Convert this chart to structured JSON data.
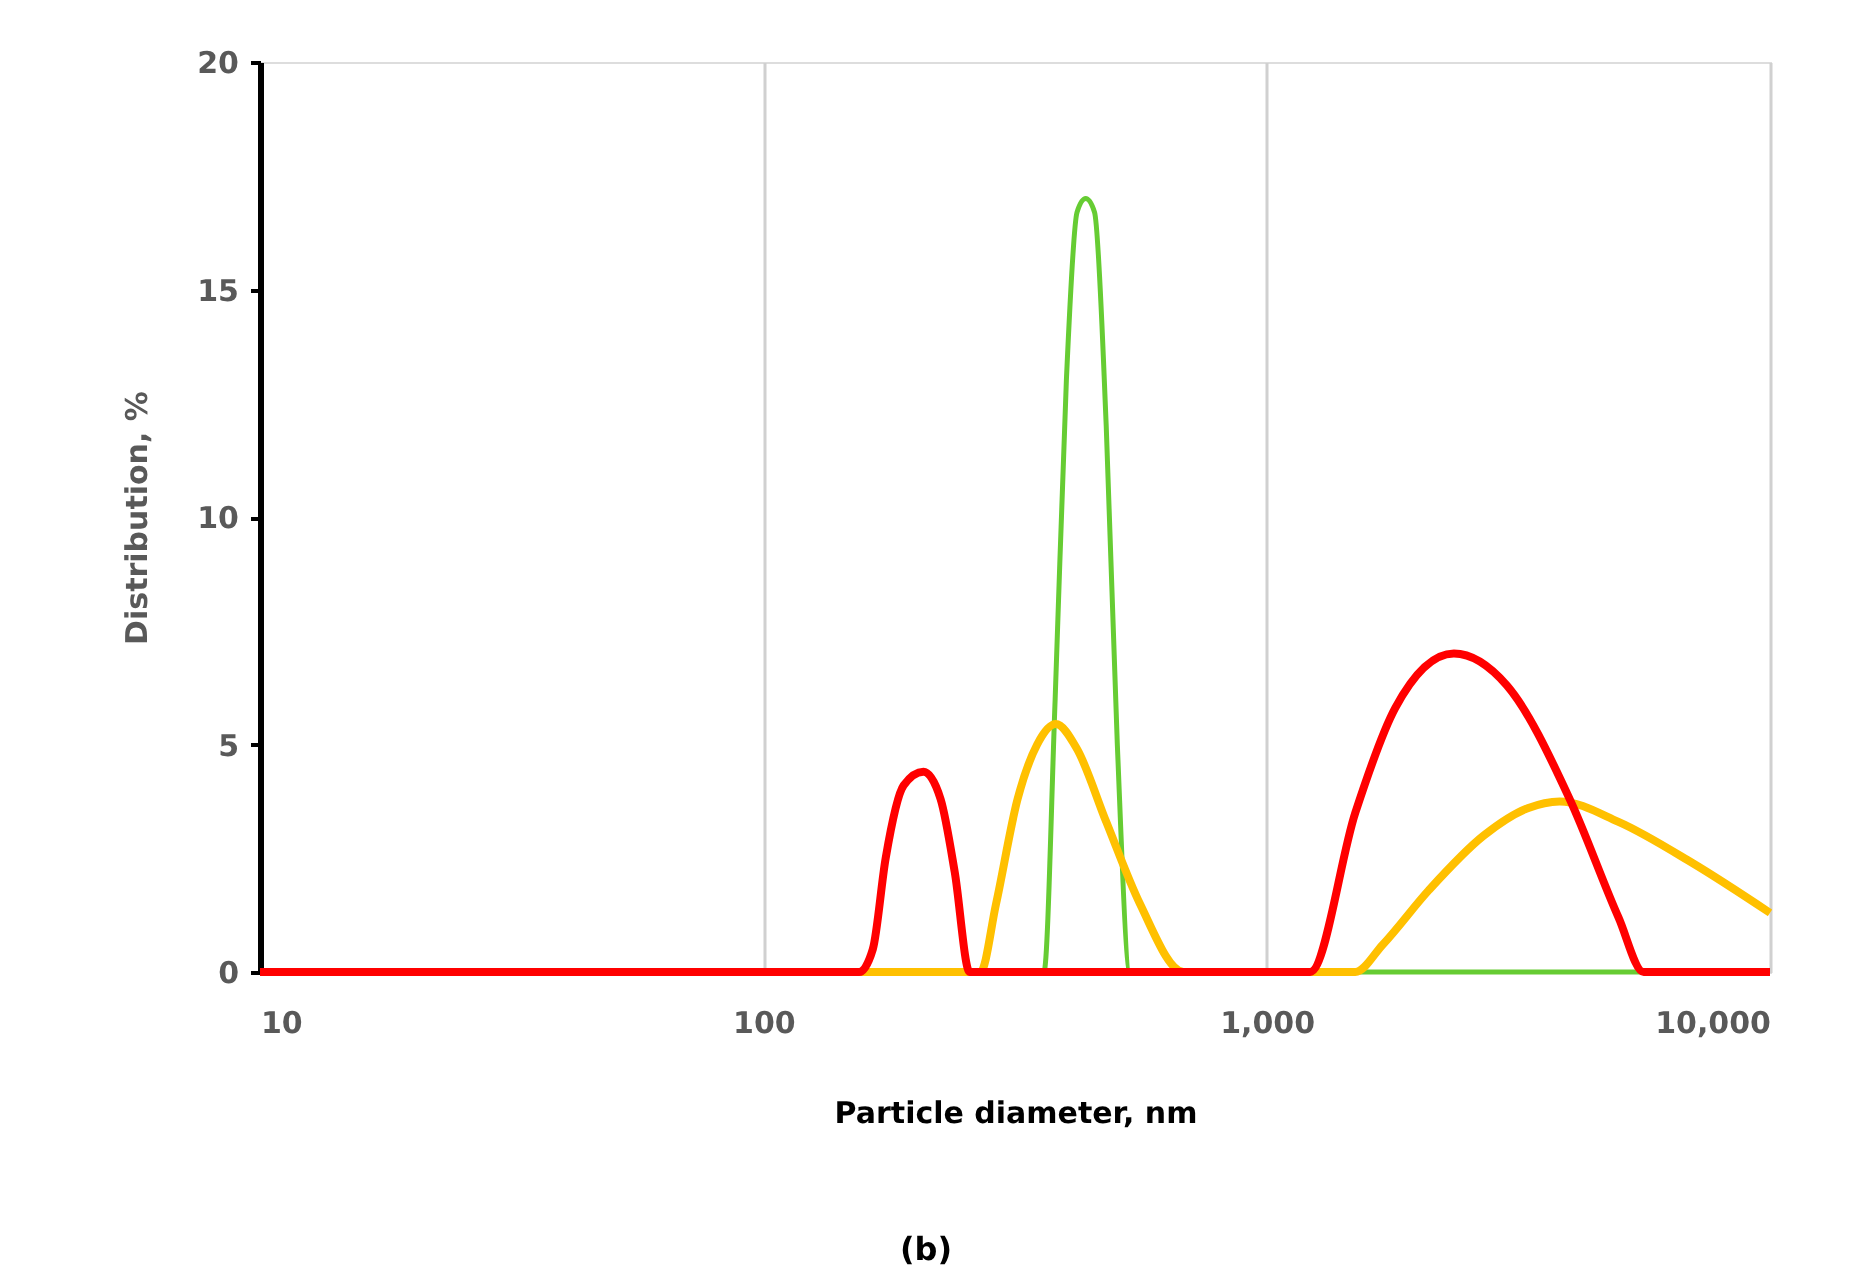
{
  "chart_data": {
    "type": "line",
    "xlabel": "Particle diameter, nm",
    "ylabel": "Distribution, %",
    "log": "x",
    "grid": "x",
    "marker": "none",
    "line_style": "solid",
    "xlim": [
      10,
      10000
    ],
    "xticks": [
      10,
      100,
      {
        "value": 1000,
        "label": "1,000"
      },
      {
        "value": 10000,
        "label": "10,000"
      }
    ],
    "ylim": [
      0,
      20
    ],
    "yticks": [
      0,
      5,
      10,
      15,
      20
    ],
    "annotations": [
      "(b)"
    ],
    "series": [
      {
        "color": "#66cc33",
        "x": [
          10,
          361,
          380,
          400,
          420,
          437,
          455,
          480,
          505,
          535,
          10000
        ],
        "values": [
          0,
          0,
          6,
          13,
          16.7,
          17,
          16.7,
          12,
          5,
          0,
          0
        ]
      },
      {
        "color": "#ffc000",
        "x": [
          10,
          270,
          290,
          320,
          350,
          381,
          420,
          480,
          560,
          684,
          1500,
          1700,
          2100,
          2700,
          3300,
          3820,
          5000,
          7000,
          10000
        ],
        "values": [
          0,
          0,
          1.5,
          3.8,
          5.0,
          5.45,
          4.9,
          3.3,
          1.5,
          0,
          0,
          0.6,
          1.8,
          3.0,
          3.6,
          3.75,
          3.3,
          2.4,
          1.3
        ]
      },
      {
        "color": "#ff0000",
        "x": [
          10,
          155,
          165,
          175,
          190,
          208,
          225,
          240,
          257,
          1220,
          1500,
          1800,
          2355,
          3000,
          4000,
          5000,
          5610,
          10000
        ],
        "values": [
          0,
          0,
          0.5,
          2.5,
          4.1,
          4.4,
          3.8,
          2.2,
          0,
          0,
          3.5,
          5.8,
          7.0,
          6.3,
          3.8,
          1.2,
          0,
          0
        ]
      }
    ]
  }
}
